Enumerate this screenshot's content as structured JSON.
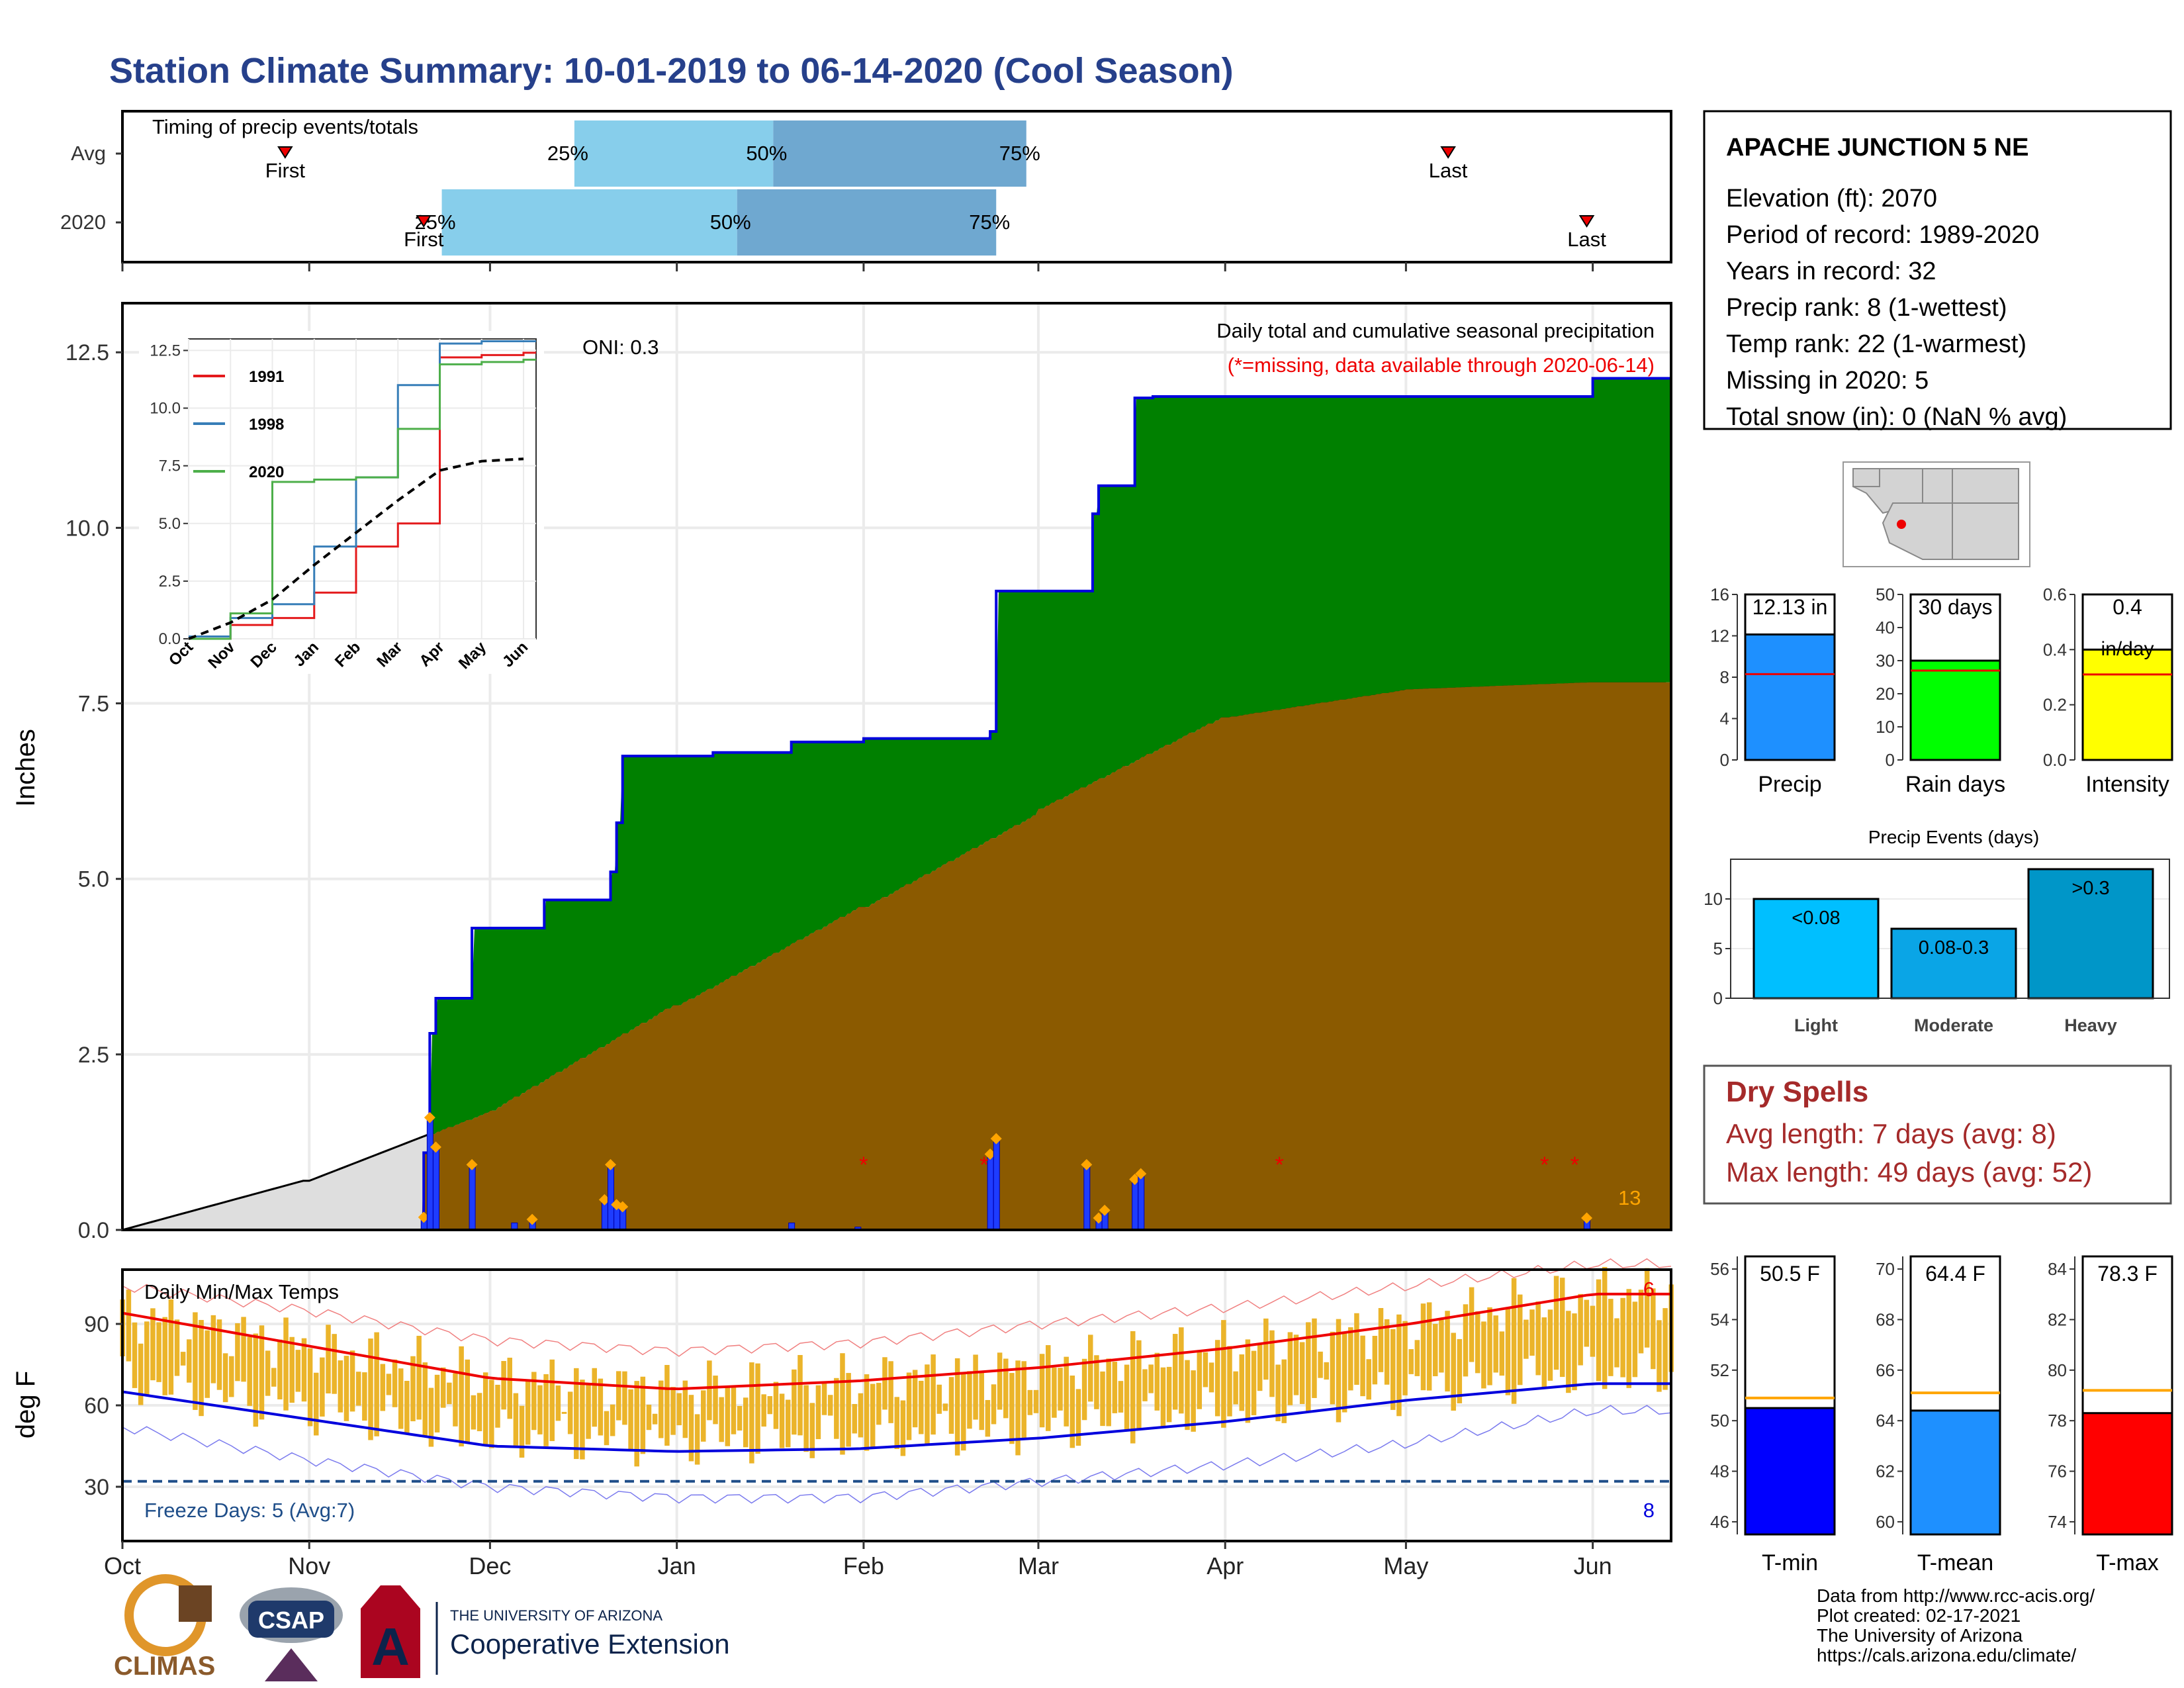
{
  "title": "Station Climate Summary: 10-01-2019 to 06-14-2020 (Cool Season)",
  "colors": {
    "title": "#26408B",
    "green": "#008000",
    "brown": "#8B5A00",
    "grey": "#DEDEDE",
    "blue_line": "#0000DD",
    "gold": "#EBB42A",
    "red": "#EE0000",
    "light_blue": "#87CEEB",
    "steel_blue": "#6FA8D0",
    "dry_red": "#A52A2A",
    "orange": "#FFA500"
  },
  "timing": {
    "title": "Timing of precip events/totals",
    "rows": [
      {
        "label": "Avg",
        "first": "First",
        "last": "Last",
        "first_date": "2019-10-28",
        "last_date": "2020-05-08",
        "p25": "2019-12-15",
        "p50": "2020-01-17",
        "p75": "2020-02-28"
      },
      {
        "label": "2020",
        "first": "First",
        "last": "Last",
        "first_date": "2019-11-20",
        "last_date": "2020-05-31",
        "p25": "2019-11-23",
        "p50": "2020-01-11",
        "p75": "2020-02-23"
      }
    ],
    "pct_labels": [
      "25%",
      "50%",
      "75%"
    ]
  },
  "main_chart": {
    "ylabel": "Inches",
    "ylim": [
      0,
      13.2
    ],
    "yticks": [
      "0.0",
      "2.5",
      "5.0",
      "7.5",
      "10.0",
      "12.5"
    ],
    "oni": "ONI: 0.3",
    "legend_title": "Daily total and cumulative seasonal precipitation",
    "legend_missing": "(*=missing, data available through 2020-06-14)",
    "count_label": "13"
  },
  "inset": {
    "yticks": [
      "0.0",
      "2.5",
      "5.0",
      "7.5",
      "10.0",
      "12.5"
    ],
    "xticks": [
      "Oct",
      "Nov",
      "Dec",
      "Jan",
      "Feb",
      "Mar",
      "Apr",
      "May",
      "Jun"
    ],
    "legend": [
      {
        "name": "1991",
        "color": "#E41A1C"
      },
      {
        "name": "1998",
        "color": "#377EB8"
      },
      {
        "name": "2020",
        "color": "#4DAF4A"
      }
    ]
  },
  "temp_chart": {
    "ylabel": "deg F",
    "title": "Daily Min/Max Temps",
    "yticks": [
      "30",
      "60",
      "90"
    ],
    "freeze_label": "Freeze Days: 5 (Avg:7)",
    "right_top": "6",
    "right_bottom": "8"
  },
  "x_months": [
    "Oct",
    "Nov",
    "Dec",
    "Jan",
    "Feb",
    "Mar",
    "Apr",
    "May",
    "Jun"
  ],
  "station": {
    "name": "APACHE JUNCTION 5 NE",
    "lines": [
      "Elevation (ft): 2070",
      "Period of record: 1989-2020",
      "Years in record: 32",
      "Precip rank: 8 (1-wettest)",
      "Temp rank: 22 (1-warmest)",
      "Missing in 2020: 5",
      "Total snow (in): 0 (NaN % avg)"
    ]
  },
  "mini_bars": [
    {
      "label": "Precip",
      "value_text": "12.13 in",
      "value": 12.13,
      "avg": 8.3,
      "ymax": 16,
      "ticks": [
        "0",
        "4",
        "8",
        "12",
        "16"
      ],
      "color": "#1E90FF"
    },
    {
      "label": "Rain days",
      "value_text": "30 days",
      "value": 30,
      "avg": 27,
      "ymax": 50,
      "ticks": [
        "0",
        "10",
        "20",
        "30",
        "40",
        "50"
      ],
      "color": "#00FF00"
    },
    {
      "label": "Intensity",
      "value_text": "0.4",
      "value_text2": "in/day",
      "value": 0.4,
      "avg": 0.31,
      "ymax": 0.6,
      "ticks": [
        "0.0",
        "0.2",
        "0.4",
        "0.6"
      ],
      "color": "#FFFF00"
    }
  ],
  "events": {
    "title": "Precip Events (days)",
    "ticks": [
      "0",
      "5",
      "10"
    ],
    "bars": [
      {
        "label": "Light",
        "text": "<0.08",
        "value": 10,
        "color": "#00BFFF"
      },
      {
        "label": "Moderate",
        "text": "0.08-0.3",
        "value": 7,
        "color": "#0AA5E6"
      },
      {
        "label": "Heavy",
        "text": ">0.3",
        "value": 13,
        "color": "#0096C8"
      }
    ]
  },
  "dry_spells": {
    "title": "Dry Spells",
    "avg": "Avg length: 7 days (avg: 8)",
    "max": "Max length: 49 days (avg: 52)"
  },
  "temp_bars": [
    {
      "label": "T-min",
      "value_text": "50.5 F",
      "value": 50.5,
      "avg": 50.9,
      "ymin": 45.5,
      "ymax": 56.5,
      "ticks": [
        "46",
        "48",
        "50",
        "52",
        "54",
        "56"
      ],
      "color": "#0000FF"
    },
    {
      "label": "T-mean",
      "value_text": "64.4 F",
      "value": 64.4,
      "avg": 65.1,
      "ymin": 59.5,
      "ymax": 70.5,
      "ticks": [
        "60",
        "62",
        "64",
        "66",
        "68",
        "70"
      ],
      "color": "#1E90FF"
    },
    {
      "label": "T-max",
      "value_text": "78.3 F",
      "value": 78.3,
      "avg": 79.2,
      "ymin": 73.5,
      "ymax": 84.5,
      "ticks": [
        "74",
        "76",
        "78",
        "80",
        "82",
        "84"
      ],
      "color": "#FF0000"
    }
  ],
  "footer": [
    "Data from http://www.rcc-acis.org/",
    "Plot created: 02-17-2021",
    "The University of Arizona",
    "https://cals.arizona.edu/climate/"
  ],
  "logos": {
    "climas": "CLIMAS",
    "csap": "CSAP",
    "ua_top": "THE UNIVERSITY OF ARIZONA",
    "ua_main": "Cooperative Extension"
  },
  "chart_data": [
    {
      "type": "area",
      "title": "Daily total and cumulative seasonal precipitation",
      "ylabel": "Inches",
      "ylim": [
        0,
        13.2
      ],
      "series": [
        {
          "name": "cumulative 2020",
          "x": [
            "2019-10-01",
            "2019-11-20",
            "2019-11-21",
            "2019-11-22",
            "2019-11-28",
            "2019-12-10",
            "2019-12-21",
            "2019-12-22",
            "2019-12-23",
            "2020-01-07",
            "2020-01-20",
            "2020-02-01",
            "2020-02-22",
            "2020-02-23",
            "2020-03-09",
            "2020-03-10",
            "2020-03-11",
            "2020-03-17",
            "2020-03-20",
            "2020-06-01",
            "2020-06-14"
          ],
          "values": [
            0,
            1.1,
            2.8,
            3.3,
            4.3,
            4.7,
            5.1,
            5.8,
            6.75,
            6.8,
            6.95,
            7.0,
            7.1,
            9.1,
            9.1,
            10.2,
            10.6,
            11.85,
            11.87,
            12.13,
            12.13
          ]
        },
        {
          "name": "daily precip",
          "x": [
            "2019-11-20",
            "2019-11-21",
            "2019-11-22",
            "2019-11-28",
            "2019-12-05",
            "2019-12-08",
            "2019-12-20",
            "2019-12-21",
            "2019-12-22",
            "2019-12-23",
            "2020-01-20",
            "2020-01-31",
            "2020-02-22",
            "2020-02-23",
            "2020-03-09",
            "2020-03-11",
            "2020-03-12",
            "2020-03-17",
            "2020-03-18",
            "2020-05-31"
          ],
          "values": [
            0.18,
            1.6,
            1.18,
            0.93,
            0.1,
            0.15,
            0.43,
            0.93,
            0.36,
            0.33,
            0.1,
            0.04,
            1.08,
            1.3,
            0.93,
            0.17,
            0.28,
            0.72,
            0.8,
            0.17
          ]
        },
        {
          "name": "missing days",
          "x": [
            "2020-02-01",
            "2020-02-21",
            "2020-04-10",
            "2020-05-24",
            "2020-05-29"
          ]
        }
      ]
    },
    {
      "type": "line",
      "title": "",
      "series": [
        {
          "name": "1991",
          "x": [
            "Oct",
            "Nov",
            "Dec",
            "Jan",
            "Feb",
            "Mar",
            "Apr",
            "May",
            "Jun"
          ],
          "values": [
            0,
            0.6,
            0.9,
            2.0,
            4.0,
            5.0,
            12.2,
            12.3,
            12.4
          ]
        },
        {
          "name": "1998",
          "x": [
            "Oct",
            "Nov",
            "Dec",
            "Jan",
            "Feb",
            "Mar",
            "Apr",
            "May",
            "Jun"
          ],
          "values": [
            0.1,
            0.9,
            1.5,
            4.0,
            7.0,
            11.0,
            12.8,
            12.9,
            12.9
          ]
        },
        {
          "name": "2020",
          "x": [
            "Oct",
            "Nov",
            "Dec",
            "Jan",
            "Feb",
            "Mar",
            "Apr",
            "May",
            "Jun"
          ],
          "values": [
            0,
            1.1,
            6.8,
            6.9,
            7.0,
            9.1,
            11.9,
            12.0,
            12.1
          ]
        },
        {
          "name": "average",
          "x": [
            "Oct",
            "Nov",
            "Dec",
            "Jan",
            "Feb",
            "Mar",
            "Apr",
            "May",
            "Jun"
          ],
          "values": [
            0,
            0.7,
            1.7,
            3.2,
            4.6,
            6.0,
            7.3,
            7.7,
            7.8
          ]
        }
      ]
    },
    {
      "type": "line",
      "title": "Daily Min/Max Temps",
      "ylabel": "deg F",
      "series": [
        {
          "name": "avg max",
          "x": [
            "Oct",
            "Nov",
            "Dec",
            "Jan",
            "Feb",
            "Mar",
            "Apr",
            "May",
            "Jun"
          ],
          "values": [
            94,
            82,
            70,
            66,
            69,
            74,
            81,
            90,
            101
          ]
        },
        {
          "name": "avg min",
          "x": [
            "Oct",
            "Nov",
            "Dec",
            "Jan",
            "Feb",
            "Mar",
            "Apr",
            "May",
            "Jun"
          ],
          "values": [
            65,
            55,
            45,
            43,
            44,
            48,
            54,
            62,
            68
          ]
        },
        {
          "name": "record high",
          "x": [
            "Oct",
            "Nov",
            "Dec",
            "Jan",
            "Feb",
            "Mar",
            "Apr",
            "May",
            "Jun"
          ],
          "values": [
            104,
            95,
            84,
            80,
            83,
            90,
            96,
            104,
            112
          ]
        },
        {
          "name": "record low",
          "x": [
            "Oct",
            "Nov",
            "Dec",
            "Jan",
            "Feb",
            "Mar",
            "Apr",
            "May",
            "Jun"
          ],
          "values": [
            52,
            40,
            30,
            26,
            26,
            32,
            38,
            46,
            58
          ]
        }
      ]
    }
  ]
}
